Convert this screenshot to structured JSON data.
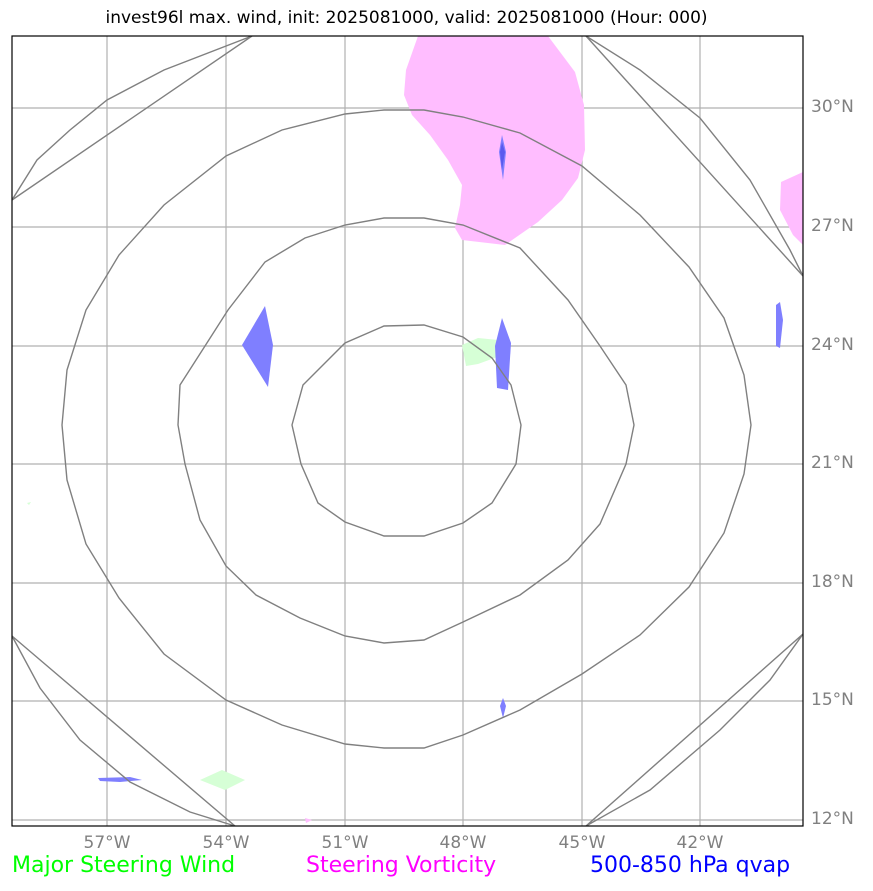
{
  "title": "invest96l max. wind, init: 2025081000, valid: 2025081000 (Hour: 000)",
  "longitude_labels": [
    "57°W",
    "54°W",
    "51°W",
    "48°W",
    "45°W",
    "42°W"
  ],
  "latitude_labels": [
    "30°N",
    "27°N",
    "24°N",
    "21°N",
    "18°N",
    "15°N",
    "12°N"
  ],
  "legend": [
    {
      "label": "Major Steering Wind",
      "color": "#00ff00"
    },
    {
      "label": "Steering Vorticity",
      "color": "#ff00ff"
    },
    {
      "label": "500-850 hPa qvap",
      "color": "#0000ff"
    }
  ],
  "colors": {
    "gridline": "#b0b0b0",
    "range_ring": "#808080",
    "steering_wind_fill": "#d6ffd6",
    "steering_vorticity_fill": "#ffbdff",
    "qvap_fill": "#7f7fff",
    "qvap_core": "#5a5aee"
  }
}
